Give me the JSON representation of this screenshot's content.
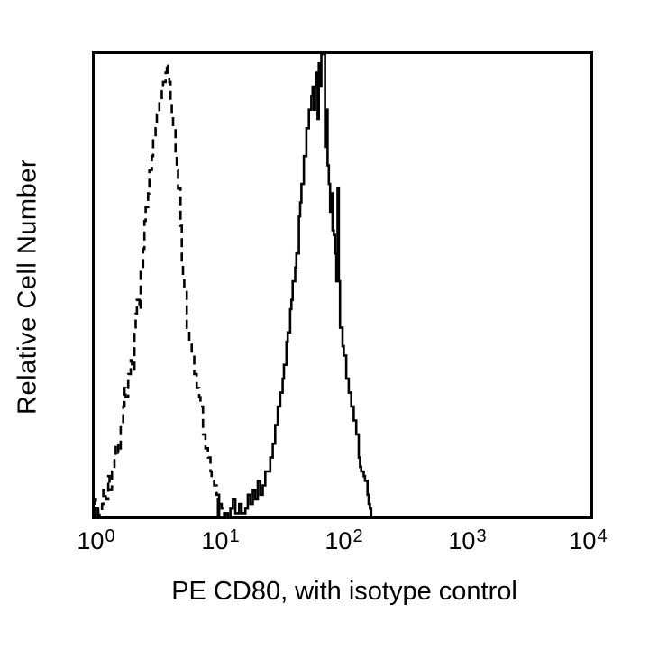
{
  "figure": {
    "background_color": "#ffffff",
    "line_color": "#000000"
  },
  "chart_data": {
    "type": "line",
    "subtype": "flow-cytometry-overlay-histogram",
    "title": "",
    "xlabel": "PE CD80, with isotype control",
    "ylabel": "Relative Cell Number",
    "x_scale": "log10",
    "xlim": [
      1,
      10000
    ],
    "xlim_log10": [
      0,
      4
    ],
    "ylim_pct": [
      0,
      100
    ],
    "grid": false,
    "legend_position": "none",
    "y_ticks": [],
    "x_ticks": [
      {
        "base": "10",
        "exp": "0",
        "value": 1
      },
      {
        "base": "10",
        "exp": "1",
        "value": 10
      },
      {
        "base": "10",
        "exp": "2",
        "value": 100
      },
      {
        "base": "10",
        "exp": "3",
        "value": 1000
      },
      {
        "base": "10",
        "exp": "4",
        "value": 10000
      }
    ],
    "series": [
      {
        "name": "Isotype control",
        "style": "dashed",
        "color": "#000000",
        "peak_log10x": 0.59,
        "peak_value_approx": 3.9,
        "points_log10x_pct": [
          [
            0.0,
            0
          ],
          [
            0.01,
            4
          ],
          [
            0.02,
            0
          ],
          [
            0.04,
            2
          ],
          [
            0.05,
            0
          ],
          [
            0.07,
            3
          ],
          [
            0.08,
            6
          ],
          [
            0.1,
            4
          ],
          [
            0.12,
            9
          ],
          [
            0.13,
            6
          ],
          [
            0.15,
            10
          ],
          [
            0.17,
            13
          ],
          [
            0.18,
            16
          ],
          [
            0.2,
            14
          ],
          [
            0.22,
            20
          ],
          [
            0.24,
            24
          ],
          [
            0.25,
            28
          ],
          [
            0.26,
            26
          ],
          [
            0.28,
            31
          ],
          [
            0.3,
            34
          ],
          [
            0.31,
            32
          ],
          [
            0.33,
            40
          ],
          [
            0.34,
            44
          ],
          [
            0.35,
            47
          ],
          [
            0.37,
            45
          ],
          [
            0.38,
            53
          ],
          [
            0.4,
            58
          ],
          [
            0.41,
            64
          ],
          [
            0.42,
            67
          ],
          [
            0.44,
            70
          ],
          [
            0.45,
            75
          ],
          [
            0.47,
            78
          ],
          [
            0.48,
            82
          ],
          [
            0.5,
            84
          ],
          [
            0.51,
            87
          ],
          [
            0.53,
            90
          ],
          [
            0.55,
            92
          ],
          [
            0.56,
            94
          ],
          [
            0.58,
            96
          ],
          [
            0.59,
            98
          ],
          [
            0.6,
            96
          ],
          [
            0.61,
            94
          ],
          [
            0.62,
            90
          ],
          [
            0.63,
            87
          ],
          [
            0.64,
            84
          ],
          [
            0.66,
            78
          ],
          [
            0.67,
            75
          ],
          [
            0.68,
            71
          ],
          [
            0.7,
            63
          ],
          [
            0.71,
            55
          ],
          [
            0.72,
            52
          ],
          [
            0.73,
            49
          ],
          [
            0.75,
            41
          ],
          [
            0.77,
            38
          ],
          [
            0.79,
            35
          ],
          [
            0.81,
            31
          ],
          [
            0.83,
            28
          ],
          [
            0.85,
            26
          ],
          [
            0.86,
            24
          ],
          [
            0.88,
            18
          ],
          [
            0.9,
            15
          ],
          [
            0.92,
            13
          ],
          [
            0.94,
            10
          ],
          [
            0.95,
            8
          ],
          [
            0.97,
            7
          ],
          [
            0.99,
            5
          ],
          [
            1.01,
            3
          ],
          [
            1.03,
            2
          ],
          [
            1.05,
            1
          ],
          [
            1.06,
            0
          ]
        ]
      },
      {
        "name": "PE CD80",
        "style": "solid",
        "color": "#000000",
        "peak_log10x": 1.84,
        "peak_value_approx": 69,
        "points_log10x_pct": [
          [
            0.99,
            0
          ],
          [
            1.0,
            4
          ],
          [
            1.01,
            0
          ],
          [
            1.05,
            1
          ],
          [
            1.08,
            0
          ],
          [
            1.1,
            2
          ],
          [
            1.12,
            4
          ],
          [
            1.14,
            1
          ],
          [
            1.17,
            3
          ],
          [
            1.19,
            1
          ],
          [
            1.22,
            2
          ],
          [
            1.24,
            5
          ],
          [
            1.26,
            3
          ],
          [
            1.28,
            6
          ],
          [
            1.3,
            4
          ],
          [
            1.32,
            8
          ],
          [
            1.34,
            5
          ],
          [
            1.36,
            7
          ],
          [
            1.38,
            10
          ],
          [
            1.4,
            10
          ],
          [
            1.42,
            13
          ],
          [
            1.44,
            16
          ],
          [
            1.46,
            20
          ],
          [
            1.48,
            24
          ],
          [
            1.5,
            27
          ],
          [
            1.52,
            30
          ],
          [
            1.53,
            33
          ],
          [
            1.55,
            38
          ],
          [
            1.56,
            40
          ],
          [
            1.58,
            45
          ],
          [
            1.59,
            47
          ],
          [
            1.6,
            51
          ],
          [
            1.62,
            54
          ],
          [
            1.63,
            57
          ],
          [
            1.65,
            65
          ],
          [
            1.66,
            68
          ],
          [
            1.67,
            72
          ],
          [
            1.69,
            78
          ],
          [
            1.71,
            84
          ],
          [
            1.73,
            88
          ],
          [
            1.75,
            91
          ],
          [
            1.76,
            93
          ],
          [
            1.77,
            88
          ],
          [
            1.78,
            93
          ],
          [
            1.79,
            96
          ],
          [
            1.8,
            86
          ],
          [
            1.81,
            98
          ],
          [
            1.82,
            93
          ],
          [
            1.83,
            100
          ],
          [
            1.85,
            100
          ],
          [
            1.86,
            80
          ],
          [
            1.87,
            88
          ],
          [
            1.88,
            76
          ],
          [
            1.89,
            72
          ],
          [
            1.9,
            66
          ],
          [
            1.91,
            70
          ],
          [
            1.92,
            62
          ],
          [
            1.93,
            61
          ],
          [
            1.94,
            57
          ],
          [
            1.95,
            51
          ],
          [
            1.96,
            71
          ],
          [
            1.97,
            51
          ],
          [
            1.98,
            41
          ],
          [
            2.0,
            37
          ],
          [
            2.01,
            35
          ],
          [
            2.03,
            30
          ],
          [
            2.05,
            27
          ],
          [
            2.07,
            24
          ],
          [
            2.09,
            21
          ],
          [
            2.11,
            18
          ],
          [
            2.13,
            13
          ],
          [
            2.14,
            11
          ],
          [
            2.15,
            10
          ],
          [
            2.17,
            9
          ],
          [
            2.18,
            8
          ],
          [
            2.2,
            5
          ],
          [
            2.21,
            3
          ],
          [
            2.22,
            2
          ],
          [
            2.23,
            0
          ]
        ]
      }
    ]
  }
}
